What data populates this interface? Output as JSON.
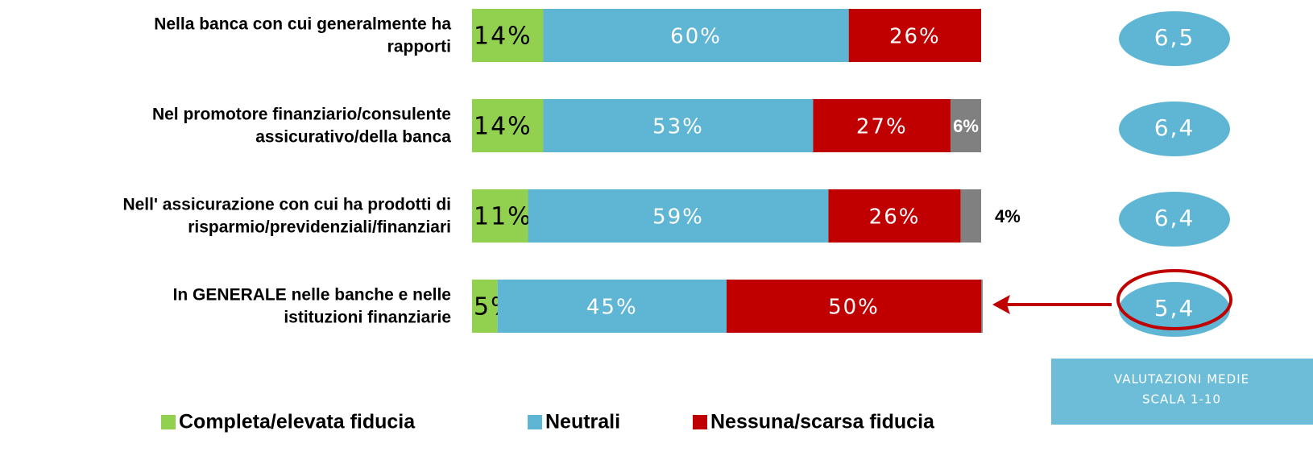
{
  "chart_data": {
    "type": "stacked-bar",
    "categories": [
      [
        "Nella banca con cui generalmente ha",
        "rapporti"
      ],
      [
        "Nel promotore finanziario/consulente",
        "assicurativo/della banca"
      ],
      [
        "Nell' assicurazione con cui ha prodotti di",
        "risparmio/previdenziali/finanziari"
      ],
      [
        "In GENERALE nelle banche e nelle",
        "istituzioni finanziarie"
      ]
    ],
    "series": [
      {
        "name": "Completa/elevata fiducia",
        "color": "#92d050",
        "values": [
          14,
          14,
          11,
          5
        ],
        "value_labels": [
          "14%",
          "14%",
          "11%",
          "5%"
        ]
      },
      {
        "name": "Neutrali",
        "color": "#5eb6d4",
        "values": [
          60,
          53,
          59,
          45
        ],
        "value_labels": [
          "60%",
          "53%",
          "59%",
          "45%"
        ]
      },
      {
        "name": "Nessuna/scarsa fiducia",
        "color": "#c00000",
        "values": [
          26,
          27,
          26,
          50
        ],
        "value_labels": [
          "26%",
          "27%",
          "26%",
          "50%"
        ]
      },
      {
        "color": "#808080",
        "values": [
          null,
          6,
          4,
          0.3
        ],
        "value_labels": [
          null,
          "6%",
          "4%",
          null
        ]
      }
    ],
    "xlim": [
      0,
      100
    ],
    "ratings": {
      "color": "#5eb6d4",
      "values": [
        6.5,
        6.4,
        6.4,
        5.4
      ],
      "value_labels": [
        "6,5",
        "6,4",
        "6,4",
        "5,4"
      ]
    },
    "rating_note": [
      "VALUTAZIONI MEDIE",
      "SCALA 1-10"
    ]
  }
}
